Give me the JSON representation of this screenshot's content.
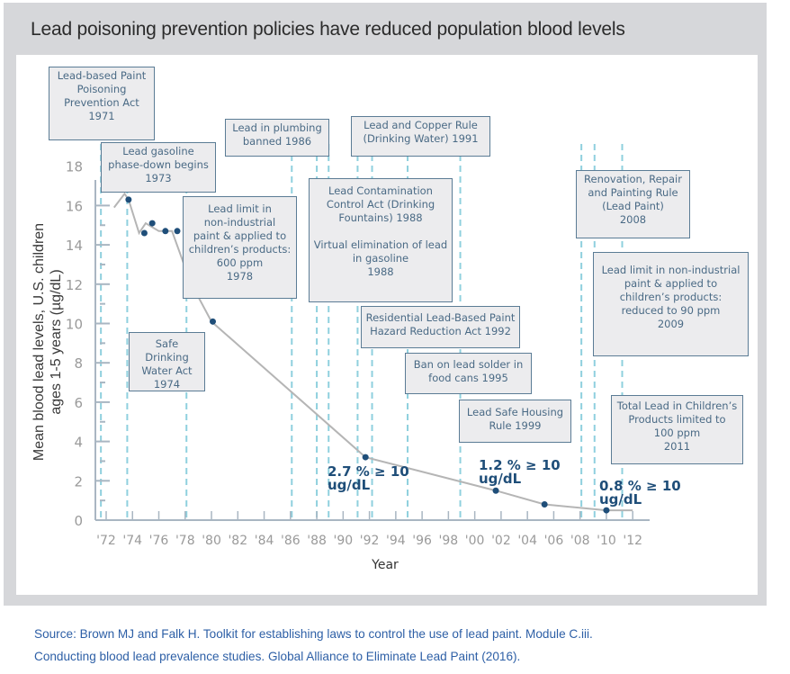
{
  "chart_data": {
    "type": "line",
    "title": "Lead poisoning prevention policies have reduced population blood levels",
    "xlabel": "Year",
    "ylabel": "Mean blood lead levels, U.S. children ages 1-5 years (µg/dL)",
    "xlim": [
      1971,
      2014
    ],
    "ylim": [
      0,
      18
    ],
    "x_ticks": [
      1972,
      1974,
      1976,
      1978,
      1980,
      1982,
      1984,
      1986,
      1988,
      1990,
      1992,
      1994,
      1996,
      1998,
      2000,
      2002,
      2004,
      2006,
      2008,
      2010,
      2012
    ],
    "x_tick_labels": [
      "'72",
      "'74",
      "'76",
      "'78",
      "'80",
      "'82",
      "'84",
      "'86",
      "'88",
      "'90",
      "'92",
      "'94",
      "'96",
      "'98",
      "'00",
      "'02",
      "'04",
      "'06",
      "'08",
      "'10",
      "'12"
    ],
    "y_ticks": [
      0,
      2,
      4,
      6,
      8,
      10,
      12,
      14,
      16,
      18
    ],
    "y_tick_labels": [
      "0",
      "2",
      "4",
      "6",
      "8",
      "10",
      "12",
      "14",
      "16",
      "18"
    ],
    "grid": false,
    "line": {
      "x": [
        1972.6,
        1973.4,
        1973.7,
        1974.5,
        1975.0,
        1976.0,
        1977.0,
        1978.4,
        1980.0,
        1991.7,
        2001.6,
        2005.3,
        2010.0,
        2012.0
      ],
      "y": [
        15.9,
        16.6,
        16.3,
        14.6,
        15.1,
        14.7,
        14.7,
        12.1,
        10.1,
        3.2,
        1.5,
        0.8,
        0.5,
        0.5
      ]
    },
    "points": {
      "x": [
        1973.7,
        1974.9,
        1975.5,
        1976.5,
        1977.4,
        1978.7,
        1980.1,
        1991.7,
        2001.6,
        2005.3,
        2010.0
      ],
      "y": [
        16.3,
        14.6,
        15.1,
        14.7,
        14.7,
        12.1,
        10.1,
        3.2,
        1.5,
        0.8,
        0.5
      ]
    },
    "policy_lines": [
      1971.6,
      1973.6,
      1978.1,
      1986.1,
      1988.0,
      1988.9,
      1991.1,
      1992.2,
      1994.9,
      1998.9,
      2008.1,
      2009.1,
      2011.2
    ],
    "annotations": [
      {
        "id": "lbpppa",
        "text": "Lead-based Paint\nPoisoning\nPrevention Act\n1971"
      },
      {
        "id": "gasoline-phasedown",
        "text": "Lead gasoline\nphase-down begins\n1973"
      },
      {
        "id": "plumbing",
        "text": "Lead in plumbing\nbanned 1986"
      },
      {
        "id": "copper-rule",
        "text": "Lead and Copper Rule\n(Drinking Water) 1991"
      },
      {
        "id": "paint-600",
        "text": "Lead limit in\nnon-industrial\npaint & applied to\nchildren’s products:\n600 ppm\n1978"
      },
      {
        "id": "contamination-act",
        "text": "Lead Contamination\nControl Act (Drinking\nFountains) 1988\n\nVirtual elimination of lead\nin gasoline\n1988"
      },
      {
        "id": "renovation-rule",
        "text": "Renovation, Repair\nand Painting Rule\n(Lead Paint)\n2008"
      },
      {
        "id": "paint-90",
        "text": "Lead limit in non-industrial\npaint & applied to\nchildren’s products:\nreduced to 90 ppm\n2009"
      },
      {
        "id": "residential-act",
        "text": "Residential Lead-Based Paint\nHazard Reduction Act 1992"
      },
      {
        "id": "safe-drinking",
        "text": "Safe Drinking\nWater Act\n1974"
      },
      {
        "id": "solder-ban",
        "text": "Ban on lead solder in\nfood cans 1995"
      },
      {
        "id": "housing-rule",
        "text": "Lead Safe Housing\nRule 1999"
      },
      {
        "id": "childrens-products",
        "text": "Total Lead in Children’s\nProducts limited to\n100 ppm\n2011"
      }
    ],
    "stat_labels": [
      {
        "id": "stat-1992",
        "text": "2.7 % ≥ 10\nug/dL"
      },
      {
        "id": "stat-2002",
        "text": "1.2 % ≥ 10\nug/dL"
      },
      {
        "id": "stat-2010",
        "text": "0.8 % ≥ 10\nug/dL"
      }
    ],
    "colors": {
      "line": "#b5b5b5",
      "point": "#1f4e79",
      "policy_line": "#8fd0de",
      "axis": "#a9b6c2",
      "box_border": "#5b7c95",
      "box_fill": "#ececee",
      "box_text": "#4a6a85",
      "tick_text": "#9a9a9a"
    }
  },
  "source": {
    "line1": "Source: Brown MJ and Falk H. Toolkit for establishing laws to control the use of lead paint. Module C.iii.",
    "line2": "Conducting blood lead prevalence studies. Global Alliance to Eliminate Lead Paint (2016)."
  }
}
